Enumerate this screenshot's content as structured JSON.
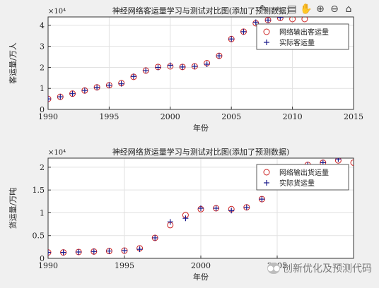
{
  "toolbar": {
    "icons": [
      "brush-icon",
      "data-tip-icon",
      "legend-icon",
      "pan-icon",
      "zoom-in-icon",
      "zoom-out-icon",
      "home-icon"
    ]
  },
  "watermark": {
    "text": "创新优化及预测代码"
  },
  "chart_data": [
    {
      "type": "scatter",
      "title": "神经网络客运量学习与测试对比图(添加了预测数据)",
      "xlabel": "年份",
      "ylabel": "客运量/万人",
      "exponent_label": "×10⁴",
      "xlim": [
        1990,
        2015
      ],
      "ylim": [
        0,
        4.4
      ],
      "xticks": [
        1990,
        1995,
        2000,
        2005,
        2010,
        2015
      ],
      "yticks": [
        0,
        1,
        2,
        3,
        4
      ],
      "grid": true,
      "legend_position": "top-right",
      "series": [
        {
          "name": "网络输出客运量",
          "marker": "circle",
          "color": "#cc2222",
          "x": [
            1990,
            1991,
            1992,
            1993,
            1994,
            1995,
            1996,
            1997,
            1998,
            1999,
            2000,
            2001,
            2002,
            2003,
            2004,
            2005,
            2006,
            2007,
            2008,
            2009,
            2010,
            2011
          ],
          "y": [
            0.5,
            0.6,
            0.75,
            0.9,
            1.05,
            1.15,
            1.25,
            1.55,
            1.85,
            2.02,
            2.05,
            2.02,
            2.05,
            2.2,
            2.55,
            3.35,
            3.7,
            4.1,
            4.25,
            4.35,
            4.3,
            4.3
          ]
        },
        {
          "name": "实际客运量",
          "marker": "plus",
          "color": "#1a1a8c",
          "x": [
            1990,
            1991,
            1992,
            1993,
            1994,
            1995,
            1996,
            1997,
            1998,
            1999,
            2000,
            2001,
            2002,
            2003,
            2004,
            2005,
            2006,
            2007,
            2008,
            2009
          ],
          "y": [
            0.5,
            0.6,
            0.75,
            0.9,
            1.05,
            1.15,
            1.22,
            1.57,
            1.85,
            2.0,
            2.1,
            2.02,
            2.05,
            2.15,
            2.55,
            3.35,
            3.7,
            4.15,
            4.25,
            4.38
          ]
        }
      ]
    },
    {
      "type": "scatter",
      "title": "神经网络货运量学习与测试对比图(添加了预测数据)",
      "xlabel": "年份",
      "ylabel": "货运量/万吨",
      "exponent_label": "×10⁴",
      "xlim": [
        1990,
        2010
      ],
      "ylim": [
        0,
        2.2
      ],
      "xticks": [
        1990,
        1995,
        2000,
        2005
      ],
      "yticks": [
        0,
        0.5,
        1,
        1.5,
        2
      ],
      "grid": true,
      "legend_position": "top-right",
      "series": [
        {
          "name": "网络输出货运量",
          "marker": "circle",
          "color": "#cc2222",
          "x": [
            1990,
            1991,
            1992,
            1993,
            1994,
            1995,
            1996,
            1997,
            1998,
            1999,
            2000,
            2001,
            2002,
            2003,
            2004,
            2005,
            2006,
            2007,
            2008,
            2009,
            2010,
            2011
          ],
          "y": [
            0.13,
            0.13,
            0.14,
            0.15,
            0.16,
            0.17,
            0.22,
            0.45,
            0.73,
            0.95,
            1.08,
            1.1,
            1.08,
            1.12,
            1.3,
            1.68,
            1.85,
            2.05,
            2.1,
            2.15,
            2.1,
            2.1
          ]
        },
        {
          "name": "实际货运量",
          "marker": "plus",
          "color": "#1a1a8c",
          "x": [
            1990,
            1991,
            1992,
            1993,
            1994,
            1995,
            1996,
            1997,
            1998,
            1999,
            2000,
            2001,
            2002,
            2003,
            2004,
            2005,
            2006,
            2007,
            2008,
            2009
          ],
          "y": [
            0.13,
            0.13,
            0.14,
            0.15,
            0.16,
            0.17,
            0.2,
            0.45,
            0.8,
            0.88,
            1.1,
            1.1,
            1.05,
            1.12,
            1.3,
            1.68,
            1.85,
            2.05,
            2.1,
            2.18
          ]
        }
      ]
    }
  ]
}
